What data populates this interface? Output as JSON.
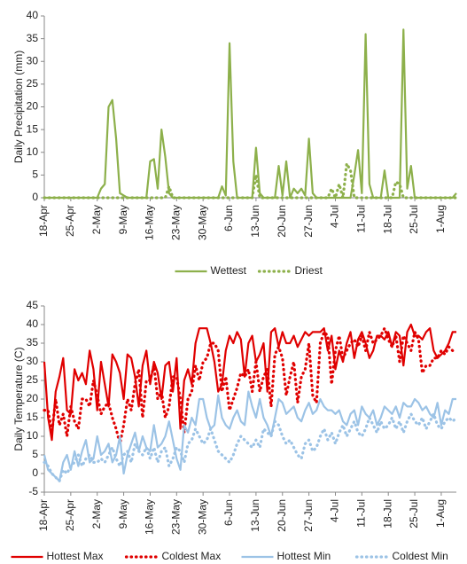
{
  "chart_data": [
    {
      "type": "line",
      "y_label": "Daily Precipitation (mm)",
      "ylim": [
        0,
        40
      ],
      "yticks": [
        0,
        5,
        10,
        15,
        20,
        25,
        30,
        35,
        40
      ],
      "categories": [
        "18-Apr",
        null,
        null,
        null,
        null,
        null,
        null,
        "25-Apr",
        null,
        null,
        null,
        null,
        null,
        null,
        "2-May",
        null,
        null,
        null,
        null,
        null,
        null,
        "9-May",
        null,
        null,
        null,
        null,
        null,
        null,
        "16-May",
        null,
        null,
        null,
        null,
        null,
        null,
        "23-May",
        null,
        null,
        null,
        null,
        null,
        null,
        "30-May",
        null,
        null,
        null,
        null,
        null,
        null,
        "6-Jun",
        null,
        null,
        null,
        null,
        null,
        null,
        "13-Jun",
        null,
        null,
        null,
        null,
        null,
        null,
        "20-Jun",
        null,
        null,
        null,
        null,
        null,
        null,
        "27-Jun",
        null,
        null,
        null,
        null,
        null,
        null,
        "4-Jul",
        null,
        null,
        null,
        null,
        null,
        null,
        "11-Jul",
        null,
        null,
        null,
        null,
        null,
        null,
        "18-Jul",
        null,
        null,
        null,
        null,
        null,
        null,
        "25-Jul",
        null,
        null,
        null,
        null,
        null,
        null,
        "1-Aug",
        null,
        null,
        null,
        null
      ],
      "series": [
        {
          "name": "Wettest",
          "color": "#8db04b",
          "style": "solid",
          "values": [
            0,
            0,
            0,
            0,
            0,
            0,
            0,
            0,
            0,
            0,
            0,
            0,
            0,
            0,
            0,
            2,
            3,
            20,
            21.5,
            13,
            1,
            0.5,
            0,
            0,
            0,
            0,
            0,
            0,
            8,
            8.5,
            2,
            15,
            9,
            1,
            0,
            0,
            0,
            0,
            0,
            0,
            0,
            0,
            0,
            0,
            0,
            0,
            0,
            2.5,
            0.5,
            34,
            8,
            0,
            0,
            0,
            0,
            0,
            11,
            1,
            0,
            0,
            0,
            0,
            7,
            0.5,
            8,
            0,
            2,
            1,
            2,
            0.5,
            13,
            1,
            0,
            0,
            0,
            0,
            0,
            0,
            0,
            0,
            0,
            0,
            5,
            10.5,
            1,
            36,
            3,
            0,
            0,
            0,
            6,
            0,
            0,
            0,
            0,
            37,
            2,
            7,
            0,
            0,
            0,
            0,
            0,
            0,
            0,
            0,
            0,
            0,
            0,
            1
          ]
        },
        {
          "name": "Driest",
          "color": "#8db04b",
          "style": "dotted",
          "values": [
            0,
            0,
            0,
            0,
            0,
            0,
            0,
            0,
            0,
            0,
            0,
            0,
            0,
            0,
            0,
            0,
            0,
            0,
            0,
            0,
            0,
            0,
            0,
            0,
            0,
            0,
            0,
            0,
            0,
            0,
            0,
            0,
            0,
            2.5,
            0,
            0,
            0,
            0,
            0,
            0,
            0,
            0,
            0,
            0,
            0,
            0,
            0,
            0,
            0,
            0,
            0,
            0,
            0,
            0,
            0,
            0,
            5,
            0,
            0,
            0,
            0,
            0,
            0,
            0,
            0,
            0,
            0,
            0,
            0,
            0,
            0,
            0,
            0,
            0,
            0,
            0,
            2,
            0,
            3,
            0,
            7.5,
            6,
            0,
            0,
            0,
            0,
            0,
            0,
            0,
            0,
            0,
            0,
            0,
            3.5,
            3,
            0,
            0,
            0,
            0,
            0,
            0,
            0,
            0,
            0,
            0,
            0,
            0,
            0,
            0,
            0
          ]
        }
      ]
    },
    {
      "type": "line",
      "y_label": "Daily Temperature (C)",
      "ylim": [
        -5,
        45
      ],
      "yticks": [
        -5,
        0,
        5,
        10,
        15,
        20,
        25,
        30,
        35,
        40,
        45
      ],
      "categories": [
        "18-Apr",
        null,
        null,
        null,
        null,
        null,
        null,
        "25-Apr",
        null,
        null,
        null,
        null,
        null,
        null,
        "2-May",
        null,
        null,
        null,
        null,
        null,
        null,
        "9-May",
        null,
        null,
        null,
        null,
        null,
        null,
        "16-May",
        null,
        null,
        null,
        null,
        null,
        null,
        "23-May",
        null,
        null,
        null,
        null,
        null,
        null,
        "30-May",
        null,
        null,
        null,
        null,
        null,
        null,
        "6-Jun",
        null,
        null,
        null,
        null,
        null,
        null,
        "13-Jun",
        null,
        null,
        null,
        null,
        null,
        null,
        "20-Jun",
        null,
        null,
        null,
        null,
        null,
        null,
        "27-Jun",
        null,
        null,
        null,
        null,
        null,
        null,
        "4-Jul",
        null,
        null,
        null,
        null,
        null,
        null,
        "11-Jul",
        null,
        null,
        null,
        null,
        null,
        null,
        "18-Jul",
        null,
        null,
        null,
        null,
        null,
        null,
        "25-Jul",
        null,
        null,
        null,
        null,
        null,
        null,
        "1-Aug",
        null,
        null,
        null,
        null
      ],
      "series": [
        {
          "name": "Hottest Max",
          "color": "#e00000",
          "style": "solid",
          "values": [
            30,
            15,
            9,
            22,
            26,
            31,
            17,
            16,
            28,
            25,
            27,
            24,
            33,
            28,
            17,
            30,
            24,
            18,
            32,
            30,
            27,
            20,
            32,
            31,
            26,
            18,
            29,
            33,
            24,
            30,
            27,
            20,
            29,
            30,
            22,
            31,
            12,
            25,
            28,
            24,
            35,
            39,
            39,
            39,
            35,
            30,
            22,
            24,
            33,
            37,
            35,
            38,
            36,
            26,
            35,
            37,
            30,
            32,
            35,
            22,
            38,
            39,
            34,
            38,
            35,
            35,
            37,
            34,
            36,
            38,
            37,
            38,
            38,
            38,
            39,
            33,
            37,
            28,
            33,
            30,
            35,
            38,
            31,
            36,
            38,
            35,
            31,
            33,
            37,
            37,
            36,
            38,
            34,
            38,
            37,
            29,
            38,
            40,
            37,
            37,
            36,
            38,
            39,
            33,
            31,
            32,
            33,
            35,
            38,
            38
          ]
        },
        {
          "name": "Coldest Max",
          "color": "#e00000",
          "style": "dotted",
          "values": [
            17,
            17,
            11,
            20,
            13,
            16,
            10,
            18,
            14,
            12,
            20,
            20,
            18,
            25,
            21,
            16,
            18,
            19,
            15,
            12,
            8,
            13,
            20,
            17,
            24,
            28,
            15,
            25,
            25,
            29,
            20,
            22,
            15,
            18,
            26,
            26,
            20,
            11,
            20,
            22,
            29,
            25,
            30,
            31,
            35,
            35,
            33,
            22,
            26,
            17,
            20,
            23,
            27,
            26,
            28,
            22,
            30,
            22,
            26,
            28,
            18,
            32,
            34,
            31,
            21,
            26,
            30,
            19,
            26,
            28,
            35,
            21,
            19,
            35,
            38,
            37,
            24,
            33,
            37,
            31,
            33,
            35,
            36,
            34,
            37,
            33,
            38,
            35,
            36,
            37,
            39,
            36,
            34,
            37,
            30,
            37,
            35,
            33,
            38,
            36,
            27,
            29,
            29,
            31,
            31,
            33,
            32,
            34,
            33,
            33
          ]
        },
        {
          "name": "Hottest Min",
          "color": "#9cc3e6",
          "style": "solid",
          "values": [
            5,
            1,
            0,
            -1,
            -2,
            3,
            5,
            1,
            6,
            2,
            6,
            9,
            3,
            4,
            10,
            5,
            6,
            8,
            3,
            5,
            10,
            0,
            5,
            8,
            11,
            6,
            10,
            7,
            6,
            13,
            7,
            8,
            10,
            14,
            9,
            4,
            1,
            13,
            11,
            15,
            13,
            20,
            20,
            15,
            12,
            13,
            21,
            15,
            13,
            12,
            15,
            17,
            14,
            13,
            22,
            18,
            15,
            20,
            15,
            13,
            10,
            15,
            20,
            19,
            16,
            17,
            18,
            15,
            14,
            17,
            19,
            16,
            17,
            20,
            18,
            17,
            17,
            16,
            17,
            14,
            13,
            16,
            17,
            13,
            18,
            16,
            15,
            17,
            13,
            15,
            18,
            17,
            16,
            18,
            15,
            19,
            18,
            18,
            20,
            19,
            17,
            18,
            16,
            15,
            19,
            13,
            17,
            16,
            20,
            20
          ]
        },
        {
          "name": "Coldest Min",
          "color": "#9cc3e6",
          "style": "dotted",
          "values": [
            3,
            2,
            0,
            -1,
            -2,
            1,
            0,
            2,
            3,
            5,
            2,
            4,
            5,
            3,
            3,
            4,
            3,
            5,
            7,
            4,
            2,
            5,
            6,
            3,
            8,
            6,
            5,
            7,
            4,
            7,
            3,
            6,
            7,
            2,
            4,
            7,
            6,
            3,
            8,
            9,
            12,
            10,
            8,
            9,
            12,
            9,
            6,
            5,
            4,
            3,
            5,
            8,
            10,
            9,
            8,
            7,
            9,
            7,
            12,
            11,
            10,
            14,
            13,
            10,
            8,
            9,
            7,
            5,
            4,
            8,
            9,
            6,
            7,
            10,
            12,
            9,
            11,
            8,
            11,
            13,
            10,
            12,
            14,
            11,
            10,
            12,
            15,
            13,
            11,
            14,
            12,
            13,
            15,
            12,
            14,
            11,
            14,
            16,
            14,
            13,
            15,
            12,
            14,
            16,
            13,
            12,
            14,
            15,
            14,
            15
          ]
        }
      ]
    }
  ]
}
